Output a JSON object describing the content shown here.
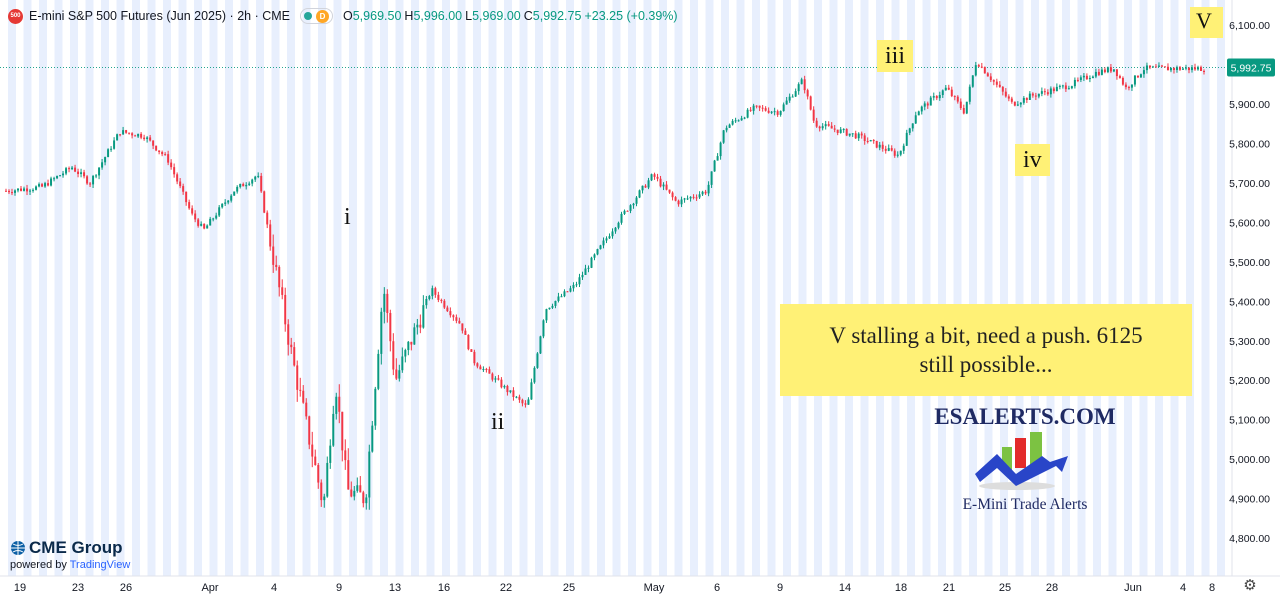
{
  "header": {
    "symbol_badge": "500",
    "title": "E-mini S&P 500 Futures (Jun 2025) · 2h · CME",
    "badge_d": "D",
    "ohlc": [
      {
        "k": "O",
        "v": "5,969.50"
      },
      {
        "k": "H",
        "v": "5,996.00"
      },
      {
        "k": "L",
        "v": "5,969.00"
      },
      {
        "k": "C",
        "v": "5,992.75"
      }
    ],
    "change": "+23.25 (+0.39%)"
  },
  "colors": {
    "up": "#089981",
    "down": "#f23645",
    "band": "#e8effd",
    "last_price": "#089981",
    "highlight": "#fff176",
    "brand": "#1f2a63"
  },
  "chart_data": {
    "type": "candlestick",
    "y_ticks": [
      "6,100.00",
      "6,000.00",
      "5,900.00",
      "5,800.00",
      "5,700.00",
      "5,600.00",
      "5,500.00",
      "5,400.00",
      "5,300.00",
      "5,200.00",
      "5,100.00",
      "5,000.00",
      "4,900.00",
      "4,800.00"
    ],
    "x_ticks": [
      "19",
      "23",
      "26",
      "Apr",
      "4",
      "9",
      "13",
      "16",
      "22",
      "25",
      "May",
      "6",
      "9",
      "14",
      "18",
      "21",
      "25",
      "28",
      "Jun",
      "4",
      "8"
    ],
    "last_price": 5992.75,
    "last_price_label": "5,992.75",
    "ylim": [
      4740,
      6180
    ],
    "path": [
      [
        0,
        5680
      ],
      [
        0.03,
        5690
      ],
      [
        0.055,
        5740
      ],
      [
        0.07,
        5700
      ],
      [
        0.095,
        5830
      ],
      [
        0.115,
        5820
      ],
      [
        0.135,
        5760
      ],
      [
        0.155,
        5620
      ],
      [
        0.165,
        5580
      ],
      [
        0.19,
        5680
      ],
      [
        0.21,
        5720
      ],
      [
        0.24,
        5240
      ],
      [
        0.265,
        4880
      ],
      [
        0.275,
        5200
      ],
      [
        0.285,
        4920
      ],
      [
        0.3,
        4900
      ],
      [
        0.315,
        5440
      ],
      [
        0.325,
        5200
      ],
      [
        0.355,
        5430
      ],
      [
        0.38,
        5340
      ],
      [
        0.39,
        5250
      ],
      [
        0.435,
        5130
      ],
      [
        0.45,
        5380
      ],
      [
        0.475,
        5440
      ],
      [
        0.51,
        5600
      ],
      [
        0.54,
        5720
      ],
      [
        0.56,
        5650
      ],
      [
        0.585,
        5680
      ],
      [
        0.6,
        5840
      ],
      [
        0.625,
        5890
      ],
      [
        0.645,
        5880
      ],
      [
        0.665,
        5960
      ],
      [
        0.675,
        5850
      ],
      [
        0.71,
        5820
      ],
      [
        0.745,
        5770
      ],
      [
        0.76,
        5880
      ],
      [
        0.785,
        5940
      ],
      [
        0.8,
        5880
      ],
      [
        0.81,
        6010
      ],
      [
        0.84,
        5900
      ],
      [
        0.855,
        5920
      ],
      [
        0.89,
        5950
      ],
      [
        0.91,
        5980
      ],
      [
        0.925,
        5990
      ],
      [
        0.935,
        5940
      ],
      [
        0.95,
        5990
      ]
    ],
    "wave_labels": [
      {
        "text": "i",
        "highlight": false
      },
      {
        "text": "ii",
        "highlight": false
      },
      {
        "text": "iii",
        "highlight": true
      },
      {
        "text": "iv",
        "highlight": true
      },
      {
        "text": "V",
        "highlight": true
      }
    ]
  },
  "annotation": {
    "line1": "V stalling a bit, need a push. 6125",
    "line2": "still possible..."
  },
  "branding": {
    "site": "ESALERTS.COM",
    "tagline": "E-Mini Trade Alerts",
    "logo_icon": "bar-chart-arrow-icon"
  },
  "footer": {
    "cme_logo": "CME Group",
    "powered": "powered by",
    "tv": "TradingView",
    "gear_icon": "gear-icon"
  }
}
